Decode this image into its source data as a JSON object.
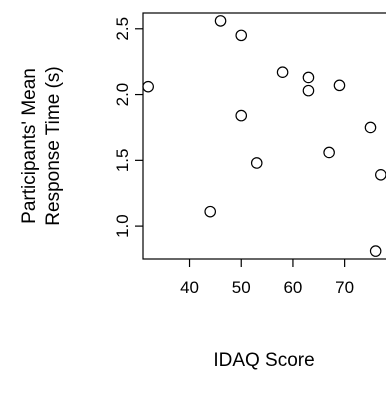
{
  "chart_data": {
    "type": "scatter",
    "title": "",
    "xlabel": "IDAQ Score",
    "ylabel_lines": [
      "Participants' Mean",
      "Response Time (s)"
    ],
    "xlim": [
      31,
      78
    ],
    "ylim": [
      0.75,
      2.62
    ],
    "xticks": [
      40,
      50,
      60,
      70
    ],
    "yticks": [
      1.0,
      1.5,
      2.0,
      2.5
    ],
    "xtick_labels": [
      "40",
      "50",
      "60",
      "70"
    ],
    "ytick_labels": [
      "1.0",
      "1.5",
      "2.0",
      "2.5"
    ],
    "grid": false,
    "legend": "none",
    "marker": "open-circle",
    "colors": {
      "marker": "#000000",
      "axes": "#000000",
      "background": "#ffffff"
    },
    "points": [
      {
        "x": 32,
        "y": 2.06
      },
      {
        "x": 44,
        "y": 1.11
      },
      {
        "x": 46,
        "y": 2.56
      },
      {
        "x": 50,
        "y": 2.45
      },
      {
        "x": 50,
        "y": 1.84
      },
      {
        "x": 53,
        "y": 1.48
      },
      {
        "x": 58,
        "y": 2.17
      },
      {
        "x": 63,
        "y": 2.13
      },
      {
        "x": 63,
        "y": 2.03
      },
      {
        "x": 67,
        "y": 1.56
      },
      {
        "x": 69,
        "y": 2.07
      },
      {
        "x": 75,
        "y": 1.75
      },
      {
        "x": 76,
        "y": 0.81
      },
      {
        "x": 77,
        "y": 1.39
      }
    ]
  }
}
